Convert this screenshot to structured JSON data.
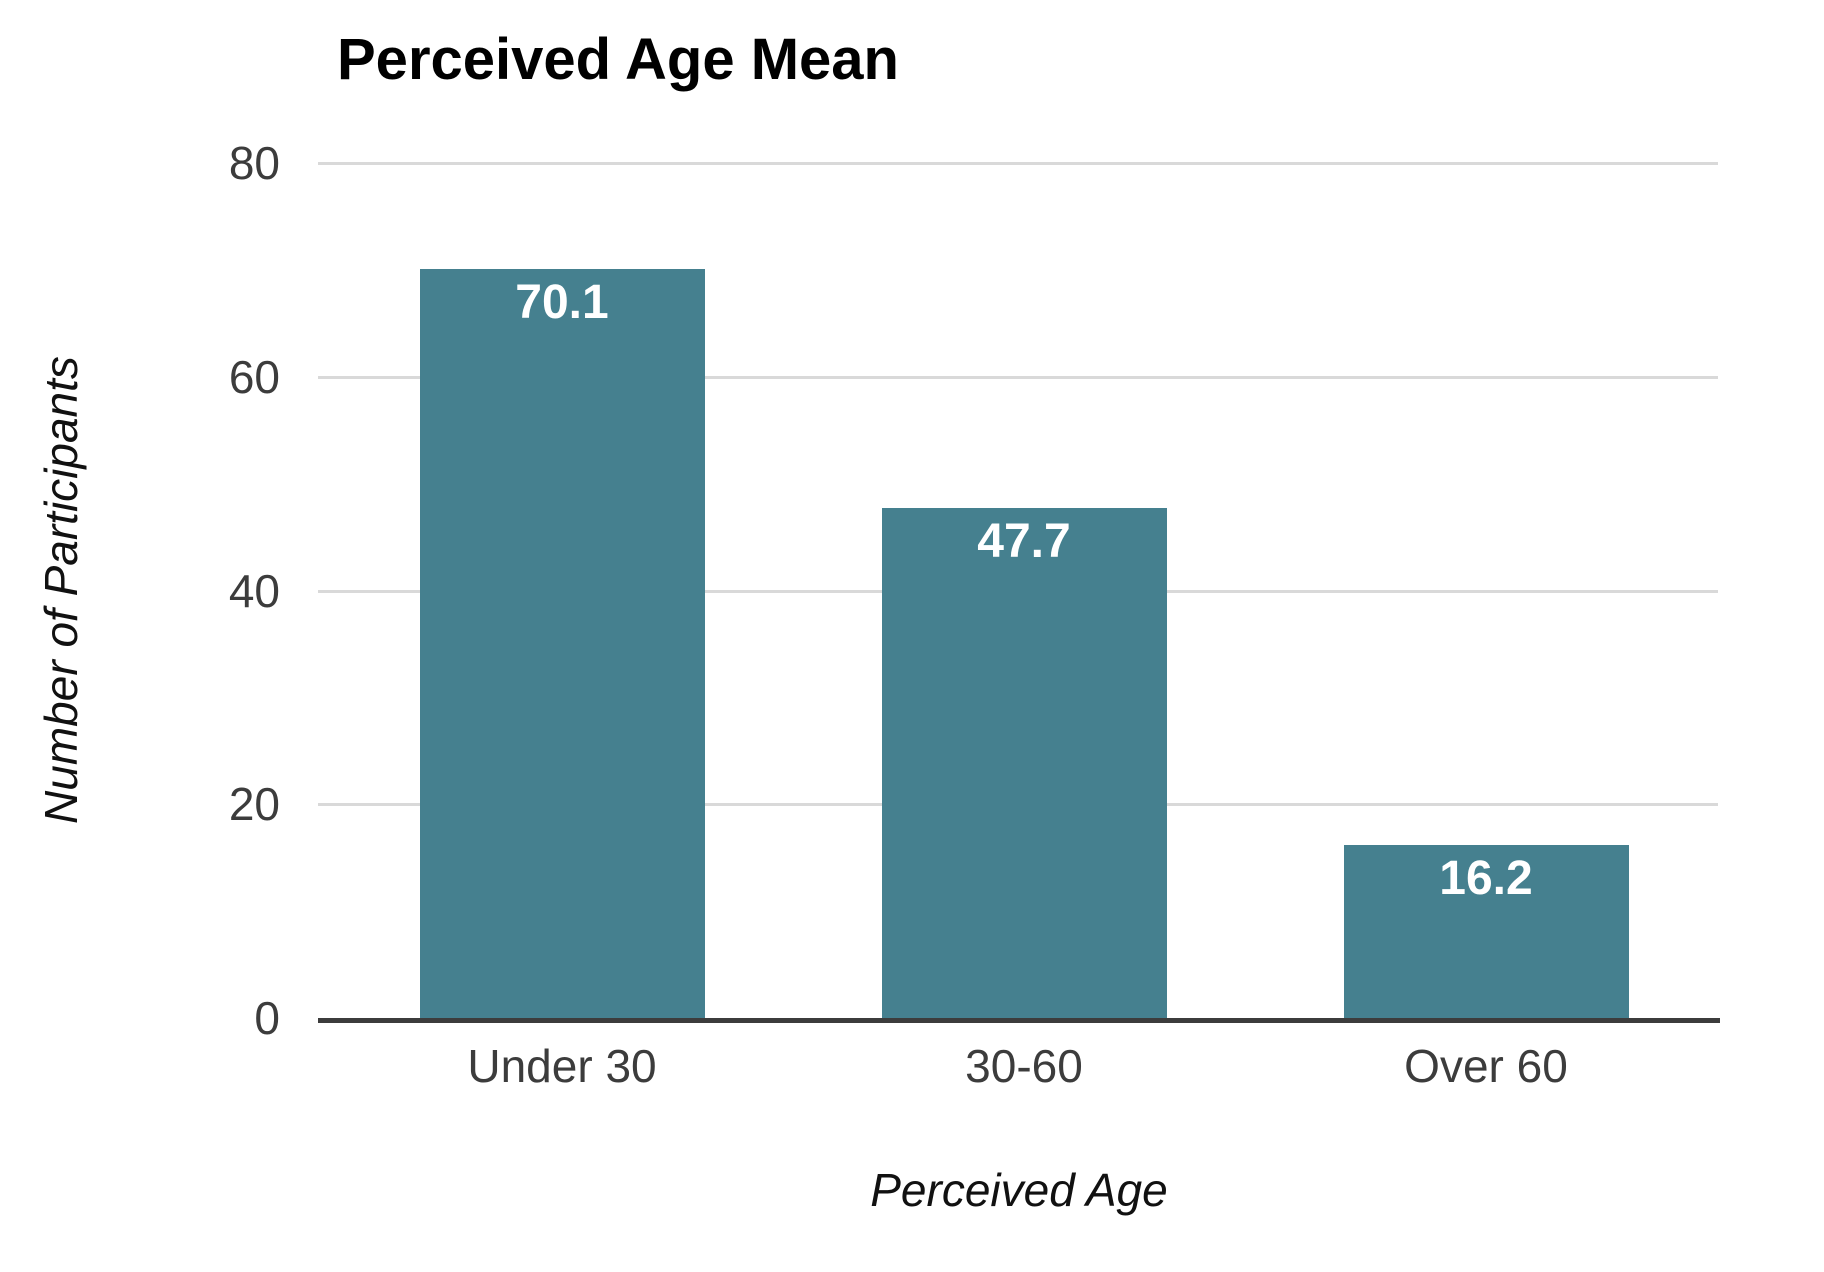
{
  "chart_data": {
    "type": "bar",
    "title": "Perceived Age Mean",
    "categories": [
      "Under 30",
      "30-60",
      "Over 60"
    ],
    "values": [
      70.1,
      47.7,
      16.2
    ],
    "bar_labels": [
      "70.1",
      "47.7",
      "16.2"
    ],
    "xlabel": "Perceived Age",
    "ylabel": "Number of Participants",
    "ylim": [
      0,
      80
    ],
    "yticks": [
      0,
      20,
      40,
      60,
      80
    ],
    "grid": "horizontal",
    "legend_position": "none"
  },
  "colors": {
    "bar": "#45808F",
    "bar_value_label": "#FFFFFF",
    "gridline": "#D9D9D9",
    "axis_line": "#3C3C3C",
    "tick_label": "#3C3C3C",
    "axis_title": "#111111",
    "title": "#000000",
    "background": "#FFFFFF"
  }
}
